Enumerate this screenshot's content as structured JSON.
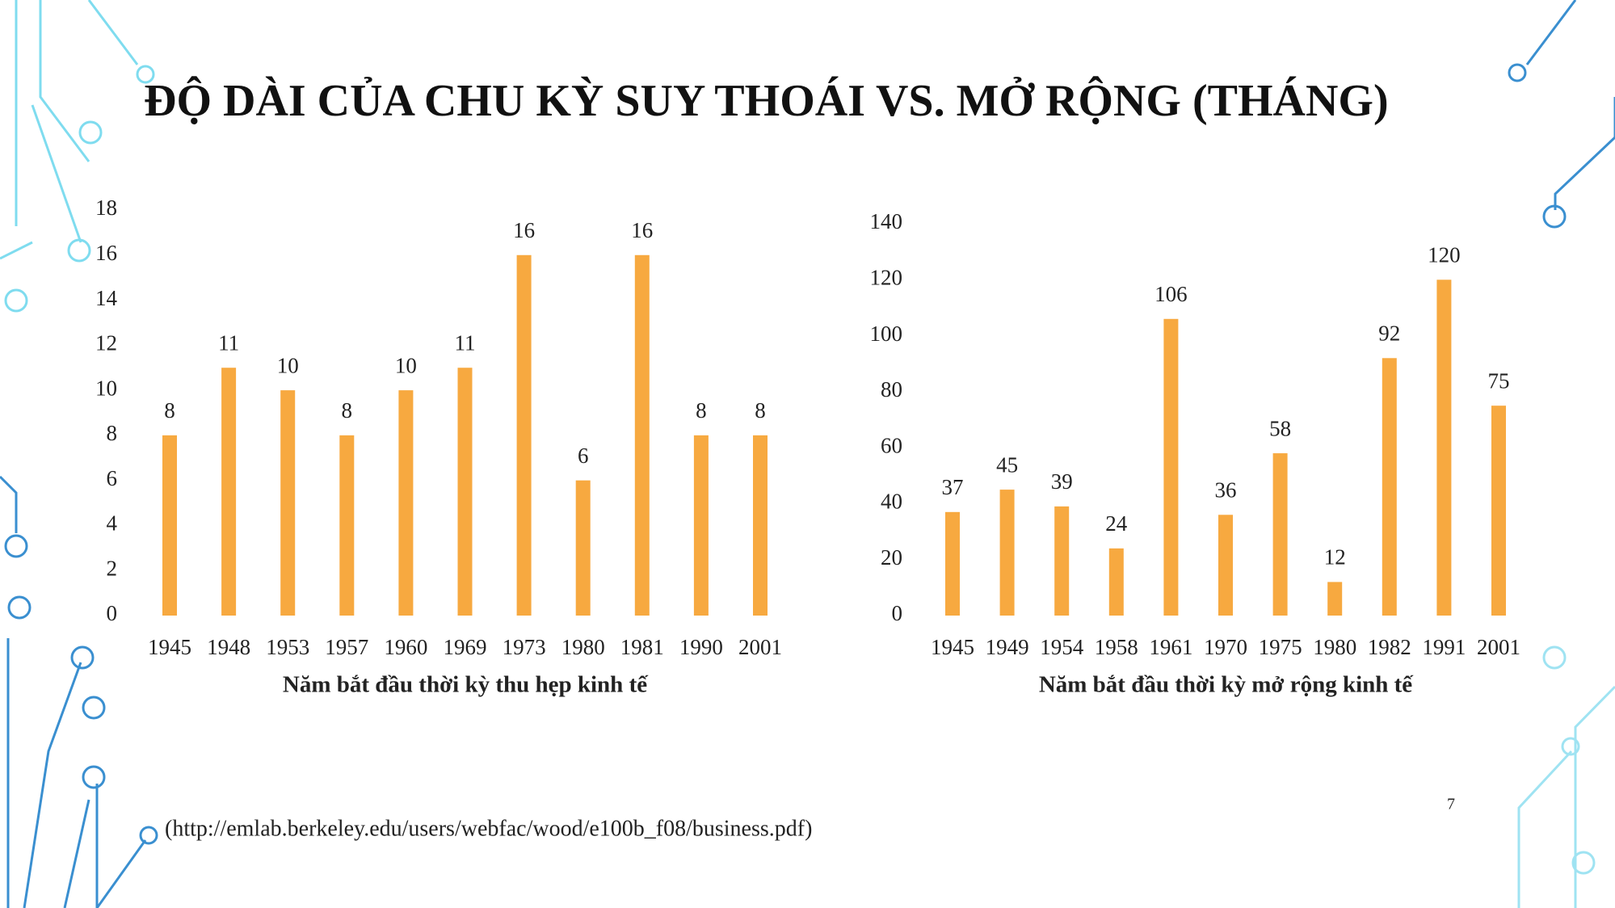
{
  "title": "ĐỘ DÀI CỦA CHU KỲ SUY THOÁI VS. MỞ RỘNG (THÁNG)",
  "source": "(http://emlab.berkeley.edu/users/webfac/wood/e100b_f08/business.pdf)",
  "page_number": "7",
  "chart_data": [
    {
      "type": "bar",
      "xlabel": "Năm bắt đầu thời kỳ thu hẹp kinh tế",
      "categories": [
        "1945",
        "1948",
        "1953",
        "1957",
        "1960",
        "1969",
        "1973",
        "1980",
        "1981",
        "1990",
        "2001"
      ],
      "values": [
        8,
        11,
        10,
        8,
        10,
        11,
        16,
        6,
        16,
        8,
        8
      ],
      "color": "#f7a940",
      "ylim": [
        0,
        18
      ],
      "yticks": [
        0,
        2,
        4,
        6,
        8,
        10,
        12,
        14,
        16,
        18
      ],
      "grid": false
    },
    {
      "type": "bar",
      "xlabel": "Năm bắt đầu thời kỳ mở rộng kinh tế",
      "categories": [
        "1945",
        "1949",
        "1954",
        "1958",
        "1961",
        "1970",
        "1975",
        "1980",
        "1982",
        "1991",
        "2001"
      ],
      "values": [
        37,
        45,
        39,
        24,
        106,
        36,
        58,
        12,
        92,
        120,
        75
      ],
      "color": "#f7a940",
      "ylim": [
        0,
        140
      ],
      "yticks": [
        0,
        20,
        40,
        60,
        80,
        100,
        120,
        140
      ],
      "grid": false
    }
  ]
}
